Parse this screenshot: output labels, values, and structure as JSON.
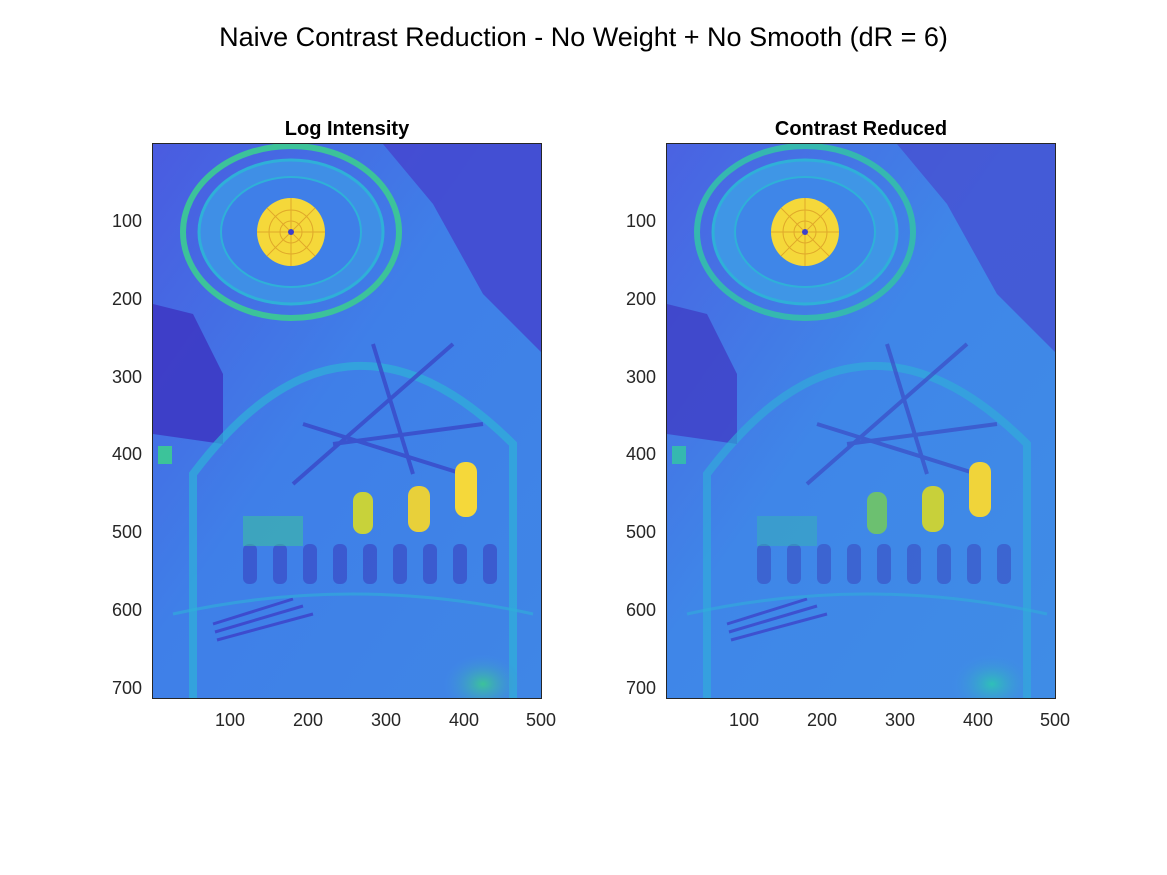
{
  "figure": {
    "title": "Naive Contrast Reduction - No Weight + No Smooth (dR = 6)"
  },
  "subplots": [
    {
      "title": "Log Intensity"
    },
    {
      "title": "Contrast Reduced"
    }
  ],
  "axes": {
    "y_ticks": [
      "100",
      "200",
      "300",
      "400",
      "500",
      "600",
      "700"
    ],
    "x_ticks": [
      "100",
      "200",
      "300",
      "400",
      "500"
    ],
    "x_range": [
      1,
      500
    ],
    "y_range": [
      1,
      718
    ]
  },
  "colors": {
    "deep_blue": "#3d3fc9",
    "mid_blue": "#3f7fe8",
    "cyan": "#2fb0d8",
    "teal_green": "#3cc39a",
    "yellow": "#f5d83a",
    "axis": "#262626"
  }
}
